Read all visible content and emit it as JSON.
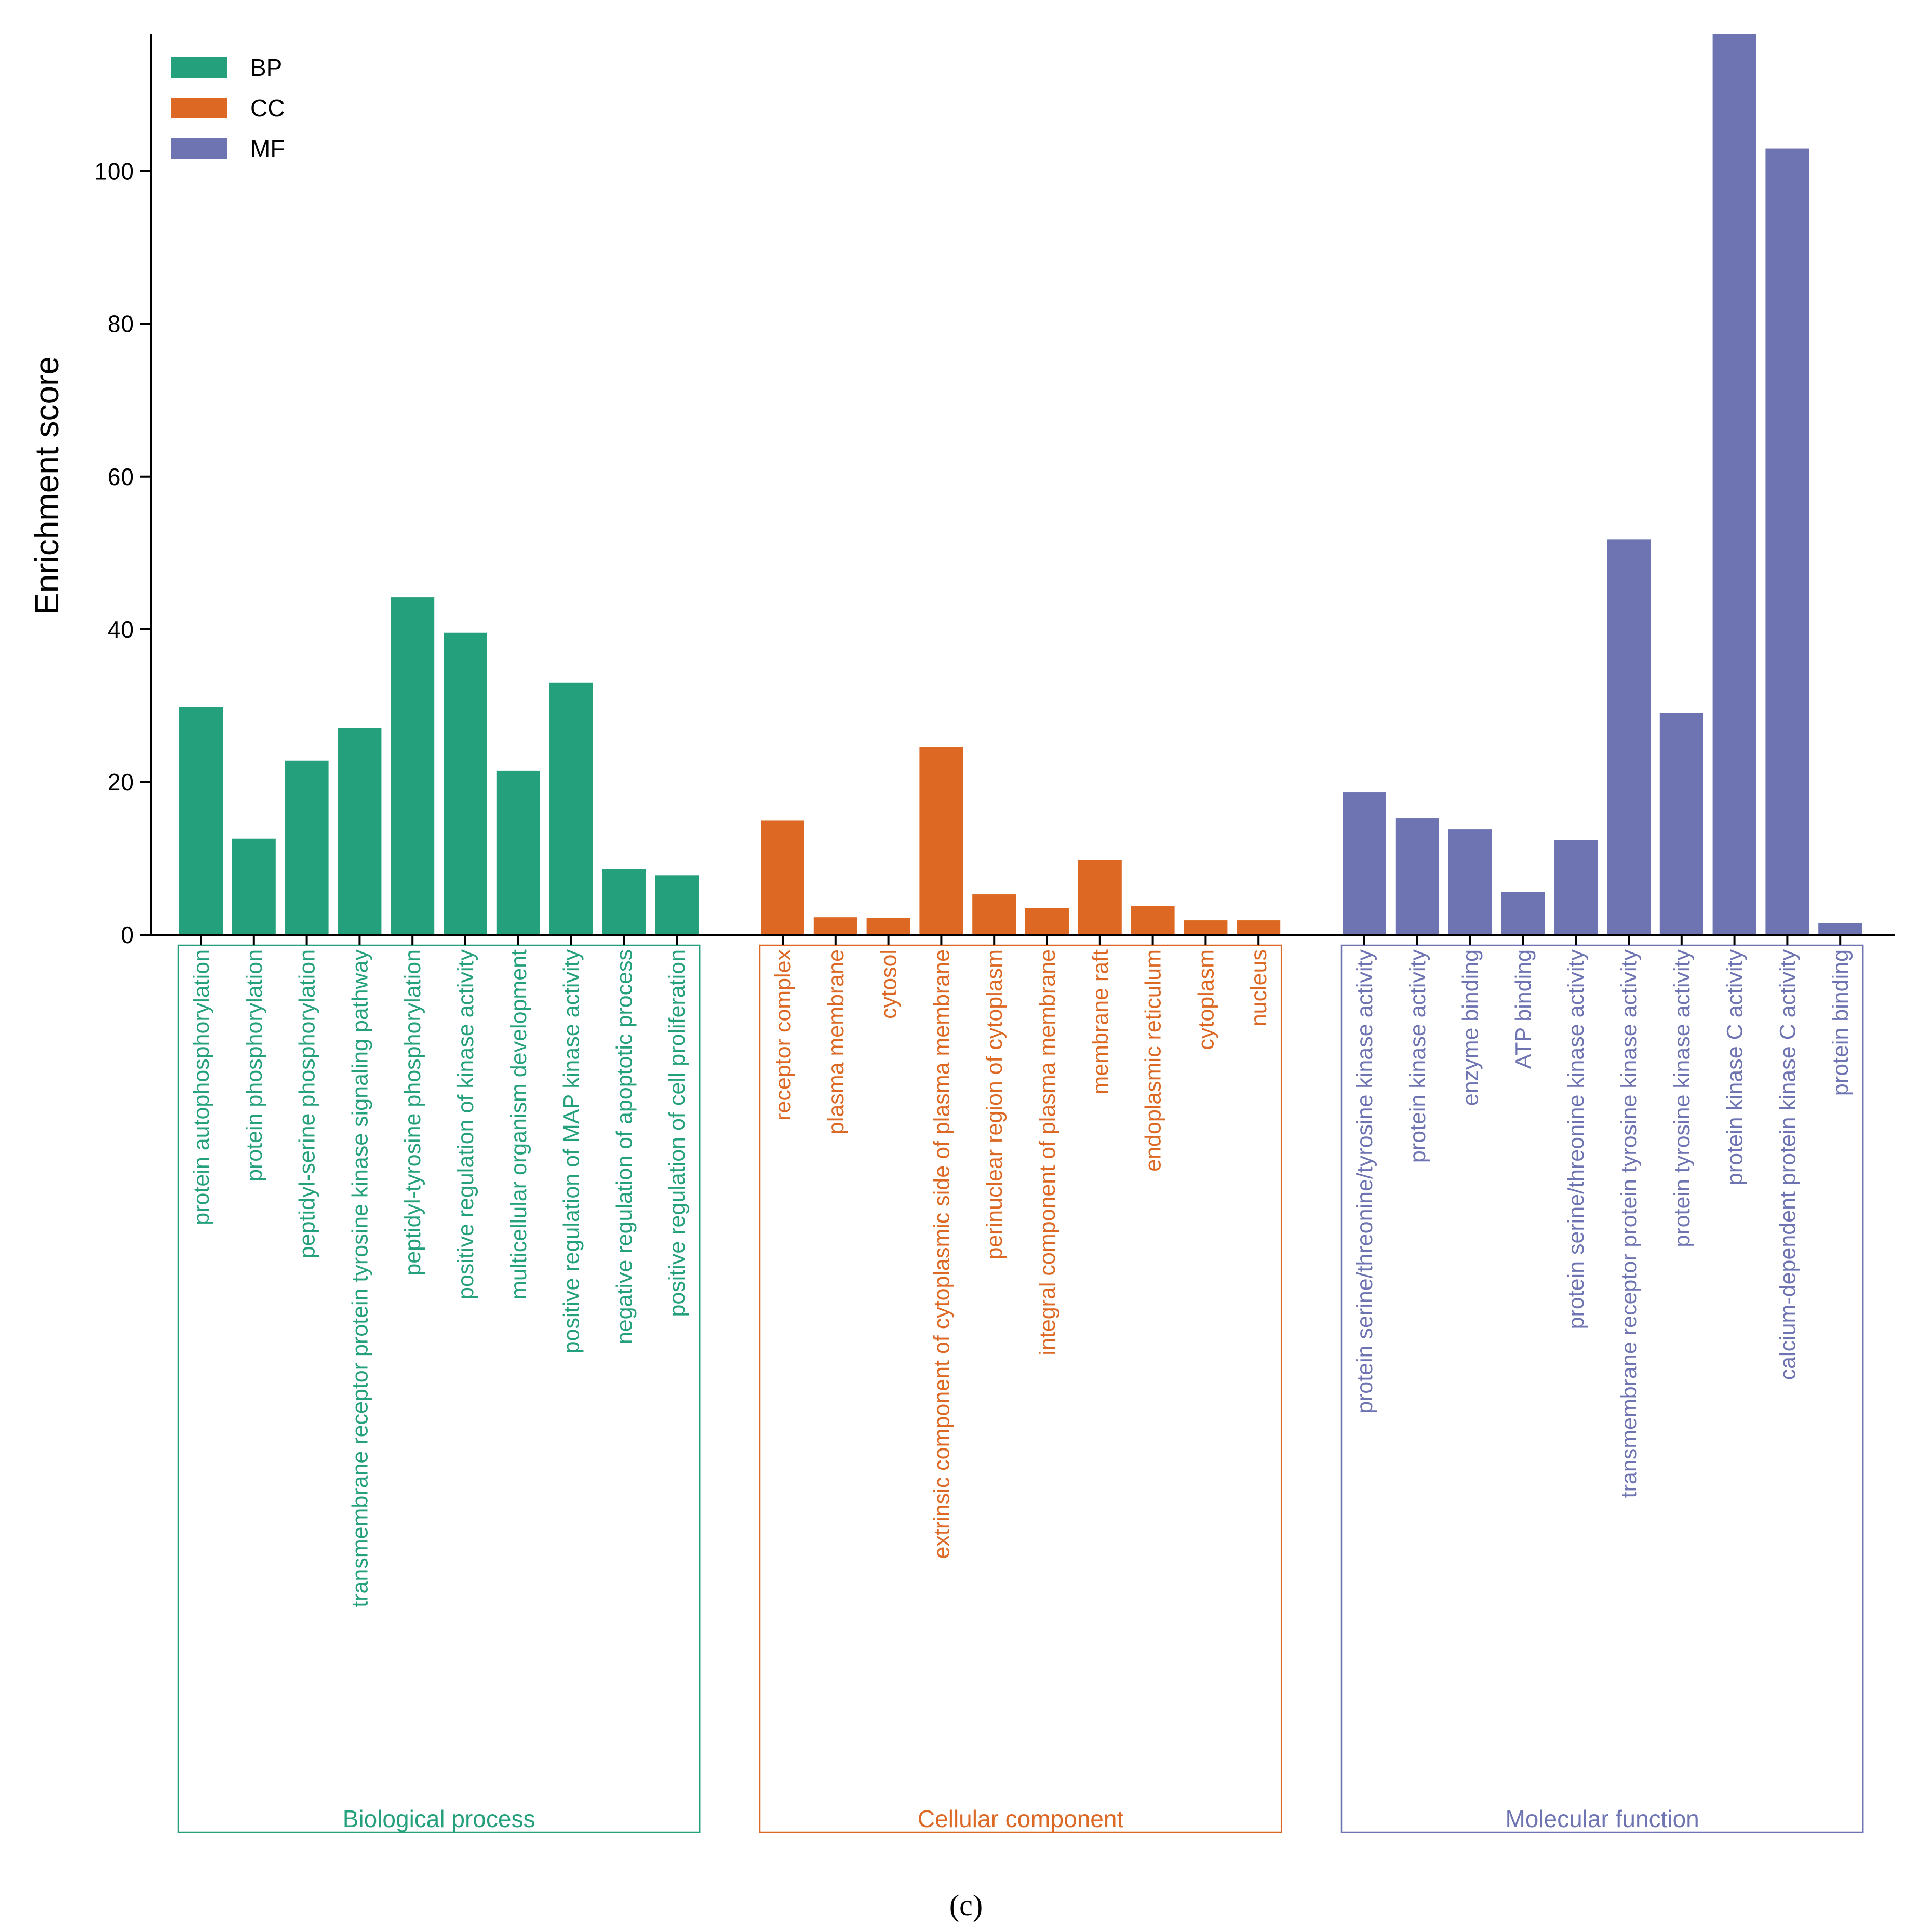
{
  "chart_data": {
    "type": "bar",
    "title": "",
    "xlabel": "",
    "ylabel": "Enrichment score",
    "ylim": [
      0,
      118
    ],
    "yticks": [
      0,
      20,
      40,
      60,
      80,
      100
    ],
    "grid": false,
    "legend_position": "top-left",
    "caption": "(c)",
    "series": [
      {
        "name": "BP",
        "group_label": "Biological process",
        "color": "#24a07c",
        "categories": [
          "protein autophosphorylation",
          "protein phosphorylation",
          "peptidyl-serine phosphorylation",
          "transmembrane receptor protein tyrosine kinase signaling pathway",
          "peptidyl-tyrosine phosphorylation",
          "positive regulation of kinase activity",
          "multicellular organism development",
          "positive regulation of MAP kinase activity",
          "negative regulation of apoptotic process",
          "positive regulation of cell proliferation"
        ],
        "values": [
          29.8,
          12.6,
          22.8,
          27.1,
          44.2,
          39.6,
          21.5,
          33.0,
          8.6,
          7.8
        ]
      },
      {
        "name": "CC",
        "group_label": "Cellular component",
        "color": "#dc6823",
        "categories": [
          "receptor complex",
          "plasma membrane",
          "cytosol",
          "extrinsic component of cytoplasmic side of plasma membrane",
          "perinuclear region of cytoplasm",
          "integral component of plasma membrane",
          "membrane raft",
          "endoplasmic reticulum",
          "cytoplasm",
          "nucleus"
        ],
        "values": [
          15.0,
          2.3,
          2.2,
          24.6,
          5.3,
          3.5,
          9.8,
          3.8,
          1.9,
          1.9
        ]
      },
      {
        "name": "MF",
        "group_label": "Molecular function",
        "color": "#6e74b2",
        "categories": [
          "protein serine/threonine/tyrosine kinase activity",
          "protein kinase activity",
          "enzyme binding",
          "ATP binding",
          "protein serine/threonine kinase activity",
          "transmembrane receptor protein tyrosine kinase activity",
          "protein tyrosine kinase activity",
          "protein kinase C activity",
          "calcium-dependent protein kinase C activity",
          "protein binding"
        ],
        "values": [
          18.7,
          15.3,
          13.8,
          5.6,
          12.4,
          51.8,
          29.1,
          118.0,
          103.0,
          1.5
        ]
      }
    ]
  }
}
